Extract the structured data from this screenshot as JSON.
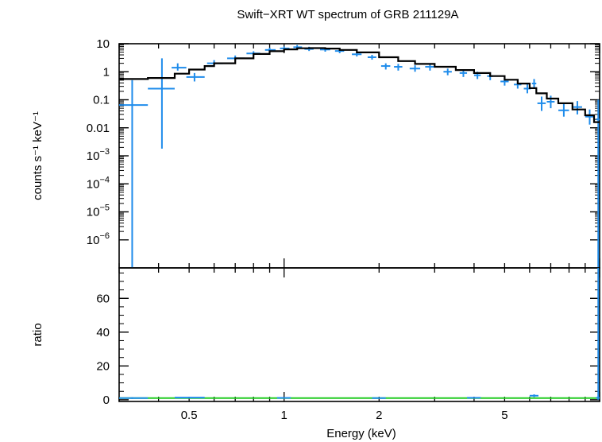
{
  "chart_data": [
    {
      "type": "line",
      "panel": "spectrum",
      "title": "Swift−XRT WT spectrum of GRB 211129A",
      "ylabel": "counts s⁻¹ keV⁻¹",
      "xscale": "log",
      "yscale": "log",
      "xlim": [
        0.3,
        10
      ],
      "ylim": [
        1e-07,
        10
      ],
      "y_tick_values": [
        10,
        1,
        0.1,
        0.01,
        0.001,
        0.0001,
        1e-05,
        1e-06
      ],
      "y_tick_labels": [
        {
          "base": "10",
          "exp": ""
        },
        {
          "base": "1",
          "exp": ""
        },
        {
          "base": "0.1",
          "exp": ""
        },
        {
          "base": "0.01",
          "exp": ""
        },
        {
          "base": "10",
          "exp": "−3"
        },
        {
          "base": "10",
          "exp": "−4"
        },
        {
          "base": "10",
          "exp": "−5"
        },
        {
          "base": "10",
          "exp": "−6"
        }
      ],
      "colors": {
        "data": "#1f8ceb",
        "model": "#000000"
      },
      "series": [
        {
          "kind": "data",
          "points": [
            {
              "x": 0.33,
              "y": 0.065,
              "xlo": 0.3,
              "xhi": 0.37,
              "ylo": 1e-07,
              "yhi": 0.5
            },
            {
              "x": 0.41,
              "y": 0.25,
              "xlo": 0.37,
              "xhi": 0.45,
              "ylo": 0.0018,
              "yhi": 3
            },
            {
              "x": 0.46,
              "y": 1.4,
              "xlo": 0.44,
              "xhi": 0.49,
              "ylo": 1.1,
              "yhi": 2.0
            },
            {
              "x": 0.52,
              "y": 0.65,
              "xlo": 0.49,
              "xhi": 0.56,
              "ylo": 0.45,
              "yhi": 0.9
            },
            {
              "x": 0.6,
              "y": 2.0,
              "xlo": 0.57,
              "xhi": 0.64,
              "ylo": 1.6,
              "yhi": 2.6
            },
            {
              "x": 0.7,
              "y": 3.0,
              "xlo": 0.66,
              "xhi": 0.75,
              "ylo": 2.5,
              "yhi": 3.8
            },
            {
              "x": 0.8,
              "y": 4.5,
              "xlo": 0.76,
              "xhi": 0.84,
              "ylo": 3.8,
              "yhi": 5.4
            },
            {
              "x": 0.9,
              "y": 6.0,
              "xlo": 0.87,
              "xhi": 0.94,
              "ylo": 5.0,
              "yhi": 7.2
            },
            {
              "x": 1.0,
              "y": 6.8,
              "xlo": 0.97,
              "xhi": 1.04,
              "ylo": 5.8,
              "yhi": 8.0
            },
            {
              "x": 1.1,
              "y": 7.5,
              "xlo": 1.07,
              "xhi": 1.14,
              "ylo": 6.3,
              "yhi": 9.0
            },
            {
              "x": 1.2,
              "y": 6.5,
              "xlo": 1.16,
              "xhi": 1.24,
              "ylo": 5.5,
              "yhi": 7.8
            },
            {
              "x": 1.35,
              "y": 6.2,
              "xlo": 1.3,
              "xhi": 1.4,
              "ylo": 5.2,
              "yhi": 7.4
            },
            {
              "x": 1.5,
              "y": 5.5,
              "xlo": 1.45,
              "xhi": 1.55,
              "ylo": 4.6,
              "yhi": 6.6
            },
            {
              "x": 1.7,
              "y": 4.2,
              "xlo": 1.64,
              "xhi": 1.76,
              "ylo": 3.5,
              "yhi": 5.0
            },
            {
              "x": 1.9,
              "y": 3.3,
              "xlo": 1.84,
              "xhi": 1.96,
              "ylo": 2.7,
              "yhi": 4.0
            },
            {
              "x": 2.1,
              "y": 1.6,
              "xlo": 2.03,
              "xhi": 2.17,
              "ylo": 1.2,
              "yhi": 2.0
            },
            {
              "x": 2.3,
              "y": 1.5,
              "xlo": 2.23,
              "xhi": 2.37,
              "ylo": 1.1,
              "yhi": 1.9
            },
            {
              "x": 2.6,
              "y": 1.3,
              "xlo": 2.5,
              "xhi": 2.7,
              "ylo": 1.0,
              "yhi": 1.7
            },
            {
              "x": 2.9,
              "y": 1.5,
              "xlo": 2.8,
              "xhi": 3.0,
              "ylo": 1.1,
              "yhi": 2.0
            },
            {
              "x": 3.3,
              "y": 1.0,
              "xlo": 3.2,
              "xhi": 3.4,
              "ylo": 0.75,
              "yhi": 1.3
            },
            {
              "x": 3.7,
              "y": 0.9,
              "xlo": 3.6,
              "xhi": 3.8,
              "ylo": 0.65,
              "yhi": 1.2
            },
            {
              "x": 4.1,
              "y": 0.75,
              "xlo": 4.0,
              "xhi": 4.2,
              "ylo": 0.55,
              "yhi": 1.0
            },
            {
              "x": 4.5,
              "y": 0.7,
              "xlo": 4.4,
              "xhi": 4.6,
              "ylo": 0.5,
              "yhi": 0.95
            },
            {
              "x": 5.0,
              "y": 0.45,
              "xlo": 4.85,
              "xhi": 5.15,
              "ylo": 0.32,
              "yhi": 0.62
            },
            {
              "x": 5.5,
              "y": 0.35,
              "xlo": 5.35,
              "xhi": 5.65,
              "ylo": 0.25,
              "yhi": 0.5
            },
            {
              "x": 5.9,
              "y": 0.25,
              "xlo": 5.75,
              "xhi": 6.05,
              "ylo": 0.17,
              "yhi": 0.38
            },
            {
              "x": 6.2,
              "y": 0.38,
              "xlo": 6.1,
              "xhi": 6.3,
              "ylo": 0.25,
              "yhi": 0.55
            },
            {
              "x": 6.55,
              "y": 0.075,
              "xlo": 6.35,
              "xhi": 6.75,
              "ylo": 0.04,
              "yhi": 0.13
            },
            {
              "x": 7.0,
              "y": 0.085,
              "xlo": 6.8,
              "xhi": 7.2,
              "ylo": 0.05,
              "yhi": 0.14
            },
            {
              "x": 7.7,
              "y": 0.042,
              "xlo": 7.4,
              "xhi": 8.0,
              "ylo": 0.025,
              "yhi": 0.07
            },
            {
              "x": 8.5,
              "y": 0.055,
              "xlo": 8.2,
              "xhi": 8.8,
              "ylo": 0.03,
              "yhi": 0.09
            },
            {
              "x": 9.3,
              "y": 0.025,
              "xlo": 9.0,
              "xhi": 9.6,
              "ylo": 0.013,
              "yhi": 0.045
            },
            {
              "x": 9.9,
              "y": 0.02,
              "xlo": 9.75,
              "xhi": 10.0,
              "ylo": 1e-07,
              "yhi": 0.1
            }
          ]
        },
        {
          "kind": "model",
          "steps": [
            {
              "x": 0.3,
              "y": 0.55
            },
            {
              "x": 0.37,
              "y": 0.6
            },
            {
              "x": 0.45,
              "y": 0.85
            },
            {
              "x": 0.5,
              "y": 1.2
            },
            {
              "x": 0.56,
              "y": 1.6
            },
            {
              "x": 0.6,
              "y": 2.0
            },
            {
              "x": 0.7,
              "y": 3.0
            },
            {
              "x": 0.8,
              "y": 4.3
            },
            {
              "x": 0.9,
              "y": 5.4
            },
            {
              "x": 1.0,
              "y": 6.3
            },
            {
              "x": 1.1,
              "y": 6.9
            },
            {
              "x": 1.2,
              "y": 7.0
            },
            {
              "x": 1.35,
              "y": 6.7
            },
            {
              "x": 1.5,
              "y": 6.0
            },
            {
              "x": 1.7,
              "y": 4.9
            },
            {
              "x": 2.0,
              "y": 3.3
            },
            {
              "x": 2.3,
              "y": 2.4
            },
            {
              "x": 2.6,
              "y": 1.9
            },
            {
              "x": 3.0,
              "y": 1.5
            },
            {
              "x": 3.5,
              "y": 1.15
            },
            {
              "x": 4.0,
              "y": 0.9
            },
            {
              "x": 4.5,
              "y": 0.7
            },
            {
              "x": 5.0,
              "y": 0.52
            },
            {
              "x": 5.5,
              "y": 0.38
            },
            {
              "x": 6.0,
              "y": 0.26
            },
            {
              "x": 6.3,
              "y": 0.17
            },
            {
              "x": 6.8,
              "y": 0.11
            },
            {
              "x": 7.4,
              "y": 0.075
            },
            {
              "x": 8.2,
              "y": 0.045
            },
            {
              "x": 9.0,
              "y": 0.028
            },
            {
              "x": 9.6,
              "y": 0.016
            },
            {
              "x": 10.0,
              "y": 0.016
            }
          ]
        }
      ]
    },
    {
      "type": "line",
      "panel": "ratio",
      "xlabel": "Energy (keV)",
      "ylabel": "ratio",
      "xscale": "log",
      "xlim": [
        0.3,
        10
      ],
      "ylim": [
        -1,
        78
      ],
      "y_tick_values": [
        0,
        20,
        40,
        60
      ],
      "y_tick_labels": [
        "0",
        "20",
        "40",
        "60"
      ],
      "x_tick_values": [
        0.5,
        1,
        2,
        5
      ],
      "x_tick_labels": [
        "0.5",
        "1",
        "2",
        "5"
      ],
      "colors": {
        "data": "#1f8ceb",
        "reference": "#22cc22"
      },
      "reference_line": 1,
      "series": [
        {
          "kind": "data",
          "points": [
            {
              "x": 0.33,
              "y": 1.0,
              "xlo": 0.3,
              "xhi": 0.37,
              "ylo": 0.5,
              "yhi": 1.5
            },
            {
              "x": 0.5,
              "y": 1.3,
              "xlo": 0.45,
              "xhi": 0.56,
              "ylo": 0.8,
              "yhi": 1.8
            },
            {
              "x": 1.0,
              "y": 1.1,
              "xlo": 0.95,
              "xhi": 1.05,
              "ylo": 0.8,
              "yhi": 1.4
            },
            {
              "x": 2.0,
              "y": 1.0,
              "xlo": 1.9,
              "xhi": 2.1,
              "ylo": 0.7,
              "yhi": 1.3
            },
            {
              "x": 4.0,
              "y": 1.2,
              "xlo": 3.8,
              "xhi": 4.2,
              "ylo": 0.8,
              "yhi": 1.6
            },
            {
              "x": 6.2,
              "y": 2.4,
              "xlo": 6.0,
              "xhi": 6.4,
              "ylo": 1.6,
              "yhi": 3.2
            },
            {
              "x": 9.9,
              "y": 1.2,
              "xlo": 9.75,
              "xhi": 10.0,
              "ylo": 0,
              "yhi": 78
            }
          ]
        }
      ]
    }
  ]
}
